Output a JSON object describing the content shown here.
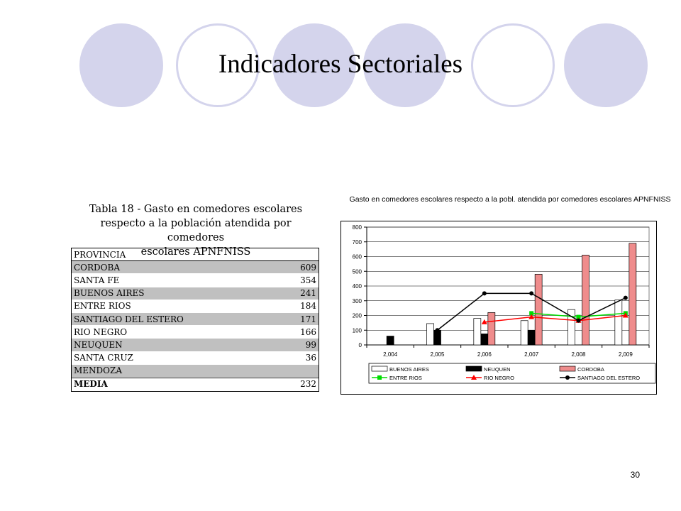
{
  "slide": {
    "title": "Indicadores Sectoriales",
    "page_number": "30",
    "decor_color": "#d4d4ec"
  },
  "table": {
    "caption_lines": [
      "Tabla 18 - Gasto en comedores escolares",
      "respecto a la población atendida por comedores",
      "escolares APNFNISS"
    ],
    "header": "PROVINCIA",
    "rows": [
      {
        "name": "CORDOBA",
        "value": "609"
      },
      {
        "name": "SANTA FE",
        "value": "354"
      },
      {
        "name": "BUENOS AIRES",
        "value": "241"
      },
      {
        "name": "ENTRE RIOS",
        "value": "184"
      },
      {
        "name": "SANTIAGO DEL ESTERO",
        "value": "171"
      },
      {
        "name": "RIO NEGRO",
        "value": "166"
      },
      {
        "name": "NEUQUEN",
        "value": "99"
      },
      {
        "name": "SANTA CRUZ",
        "value": "36"
      },
      {
        "name": "MENDOZA",
        "value": ""
      }
    ],
    "media_label": "MEDIA",
    "media_value": "232"
  },
  "chart_data": {
    "type": "bar",
    "title": "Gasto en comedores escolares respecto a la pobl. atendida por comedores escolares APNFNISS",
    "categories": [
      "2,004",
      "2,005",
      "2,006",
      "2,007",
      "2,008",
      "2,009"
    ],
    "ylim": [
      0,
      800
    ],
    "yticks": [
      "0",
      "100",
      "200",
      "300",
      "400",
      "500",
      "600",
      "700",
      "800"
    ],
    "grid": true,
    "legend_position": "bottom",
    "bar_series": [
      {
        "name": "BUENOS AIRES",
        "color": "#ffffff",
        "values": [
          null,
          145,
          180,
          165,
          240,
          305
        ]
      },
      {
        "name": "NEUQUEN",
        "color": "#000000",
        "values": [
          60,
          100,
          75,
          100,
          null,
          null
        ]
      },
      {
        "name": "CORDOBA",
        "color": "#ef8c8c",
        "values": [
          null,
          null,
          220,
          480,
          610,
          690
        ]
      }
    ],
    "line_series": [
      {
        "name": "ENTRE RIOS",
        "color": "#00dd00",
        "marker": "square",
        "values": [
          null,
          null,
          null,
          215,
          190,
          215
        ]
      },
      {
        "name": "RIO NEGRO",
        "color": "#ff0000",
        "marker": "triangle",
        "values": [
          null,
          null,
          155,
          190,
          165,
          200
        ]
      },
      {
        "name": "SANTIAGO DEL ESTERO",
        "color": "#000000",
        "marker": "circle",
        "values": [
          null,
          100,
          350,
          350,
          165,
          320
        ]
      }
    ]
  }
}
